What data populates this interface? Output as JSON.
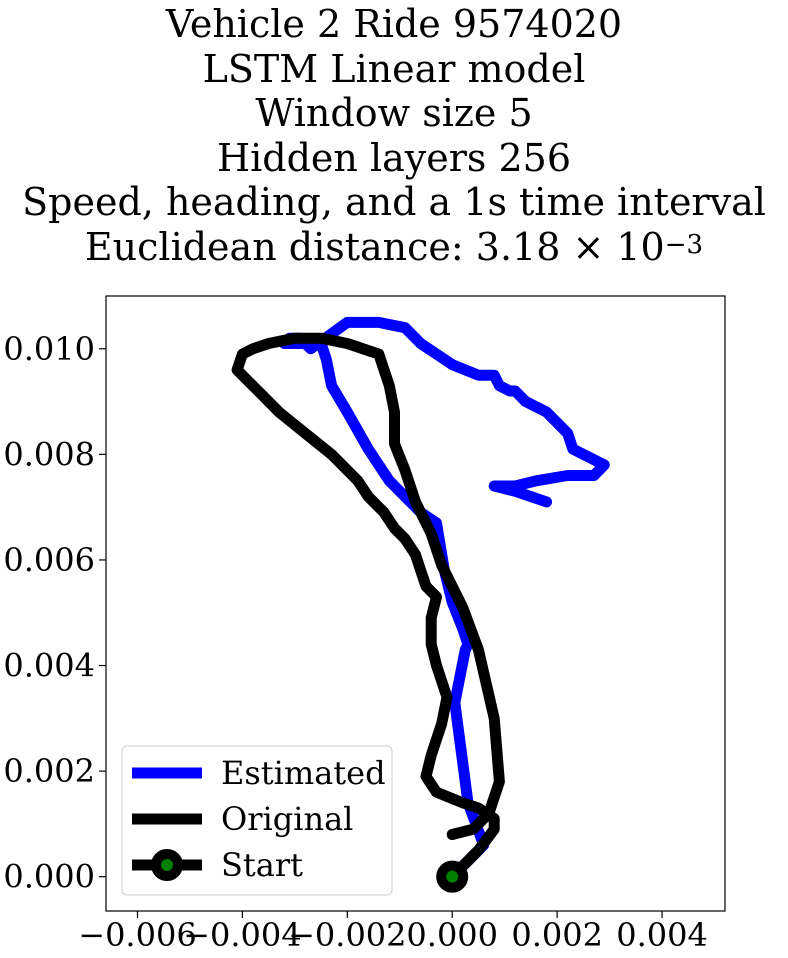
{
  "chart_data": {
    "type": "line",
    "title_lines": [
      "Vehicle 2 Ride 9574020",
      "LSTM Linear model",
      "Window size 5",
      "Hidden layers 256",
      "Speed, heading, and a 1s time interval"
    ],
    "distance_label": "Euclidean distance: 3.18 × 10",
    "distance_exponent": "−3",
    "xlabel": "",
    "ylabel": "",
    "xlim": [
      -0.0066,
      0.0052
    ],
    "ylim": [
      -0.00065,
      0.011
    ],
    "xticks": [
      -0.006,
      -0.004,
      -0.002,
      0.0,
      0.002,
      0.004
    ],
    "xtick_labels": [
      "−0.006",
      "−0.004",
      "−0.002",
      "0.000",
      "0.002",
      "0.004"
    ],
    "yticks": [
      0.0,
      0.002,
      0.004,
      0.006,
      0.008,
      0.01
    ],
    "ytick_labels": [
      "0.000",
      "0.002",
      "0.004",
      "0.006",
      "0.008",
      "0.010"
    ],
    "legend_position": "lower-left",
    "series": [
      {
        "name": "Estimated",
        "color": "#0000ff",
        "x": [
          0.0,
          0.0006,
          0.0003,
          5e-05,
          0.00025,
          0.0003,
          0.0002,
          0.0,
          -0.00015,
          -0.0003,
          -0.0006,
          -0.0009,
          -0.0012,
          -0.0016,
          -0.002,
          -0.0023,
          -0.0024,
          -0.0025,
          -0.0032,
          -0.0031,
          -0.0029,
          -0.0027,
          -0.002,
          -0.0014,
          -0.0009,
          -0.0008,
          -0.0006,
          -0.0003,
          0.0,
          0.0005,
          0.0008,
          0.0009,
          0.0011,
          0.0012,
          0.0014,
          0.0018,
          0.0022,
          0.0023,
          0.0029,
          0.0027,
          0.0022,
          0.0016,
          0.0012,
          0.0008,
          0.0012,
          0.0018,
          0.0015,
          0.0012
        ],
        "y": [
          0.0,
          0.0006,
          0.0014,
          0.0033,
          0.0043,
          0.0044,
          0.0047,
          0.0052,
          0.0058,
          0.0067,
          0.0069,
          0.0072,
          0.0075,
          0.0081,
          0.0088,
          0.0093,
          0.0098,
          0.0101,
          0.0101,
          0.0102,
          0.0102,
          0.01,
          0.0105,
          0.0105,
          0.0104,
          0.0103,
          0.0101,
          0.0099,
          0.0097,
          0.0095,
          0.0095,
          0.0093,
          0.0092,
          0.0092,
          0.009,
          0.0088,
          0.0084,
          0.0081,
          0.0078,
          0.0076,
          0.0076,
          0.0075,
          0.0074,
          0.0074,
          0.0073,
          0.0071,
          0.0072,
          0.0073
        ]
      },
      {
        "name": "Original",
        "color": "#000000",
        "x": [
          0.0,
          0.0005,
          0.0008,
          0.0008,
          0.0005,
          0.0002,
          -0.0003,
          -0.0005,
          -0.0004,
          -0.0002,
          -0.0001,
          -0.0003,
          -0.0004,
          -0.0004,
          -0.0003,
          -0.0005,
          -0.0006,
          -0.0007,
          -0.0009,
          -0.0011,
          -0.0013,
          -0.0016,
          -0.0018,
          -0.0023,
          -0.0028,
          -0.0033,
          -0.0036,
          -0.0039,
          -0.0041,
          -0.004,
          -0.0038,
          -0.0035,
          -0.003,
          -0.0025,
          -0.002,
          -0.0014,
          -0.0012,
          -0.0011,
          -0.0011,
          -0.0009,
          -0.0007,
          -0.0004,
          -0.0002,
          0.0002,
          0.0005,
          0.0008,
          0.0009,
          0.0007,
          0.0004,
          0.0
        ],
        "y": [
          0.0,
          0.0005,
          0.0009,
          0.0011,
          0.0013,
          0.0014,
          0.0016,
          0.0019,
          0.0023,
          0.0029,
          0.0034,
          0.004,
          0.0044,
          0.0049,
          0.0053,
          0.0055,
          0.0058,
          0.0061,
          0.0064,
          0.0066,
          0.0069,
          0.0072,
          0.0075,
          0.008,
          0.0084,
          0.0088,
          0.0091,
          0.0094,
          0.0096,
          0.0099,
          0.01,
          0.0101,
          0.0102,
          0.0102,
          0.0101,
          0.0099,
          0.0093,
          0.0088,
          0.0082,
          0.0077,
          0.0071,
          0.0065,
          0.0059,
          0.0051,
          0.0043,
          0.003,
          0.0018,
          0.0012,
          0.0009,
          0.0008
        ]
      }
    ],
    "start": {
      "name": "Start",
      "x": 0.0,
      "y": 0.0,
      "color": "#008000",
      "edge_color": "#000000"
    }
  }
}
